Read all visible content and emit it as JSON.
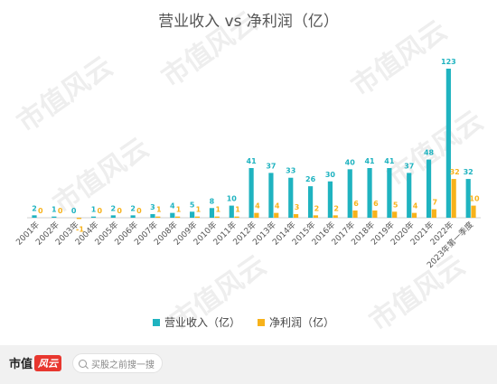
{
  "chart_data": {
    "type": "bar",
    "title": "营业收入 vs 净利润（亿）",
    "categories": [
      "2001年",
      "2002年",
      "2003年",
      "2004年",
      "2005年",
      "2006年",
      "2007年",
      "2008年",
      "2009年",
      "2010年",
      "2011年",
      "2012年",
      "2013年",
      "2014年",
      "2015年",
      "2016年",
      "2017年",
      "2018年",
      "2019年",
      "2020年",
      "2021年",
      "2022年",
      "2023年第一季度"
    ],
    "series": [
      {
        "name": "营业收入（亿）",
        "color": "#1fb3c0",
        "values": [
          2,
          1,
          0,
          1,
          2,
          2,
          3,
          4,
          5,
          8,
          10,
          41,
          37,
          33,
          26,
          30,
          40,
          41,
          41,
          37,
          48,
          123,
          32
        ]
      },
      {
        "name": "净利润（亿）",
        "color": "#f7b21b",
        "values": [
          0,
          0,
          -1,
          0,
          0,
          0,
          1,
          1,
          1,
          1,
          1,
          4,
          4,
          3,
          2,
          2,
          6,
          6,
          5,
          4,
          7,
          32,
          10
        ]
      }
    ],
    "legend_position": "bottom",
    "grid": false
  },
  "watermark": {
    "text": "市值风云"
  },
  "footer": {
    "logo_text": "市值",
    "logo_mark": "风云",
    "search_placeholder": "买股之前搜一搜"
  }
}
